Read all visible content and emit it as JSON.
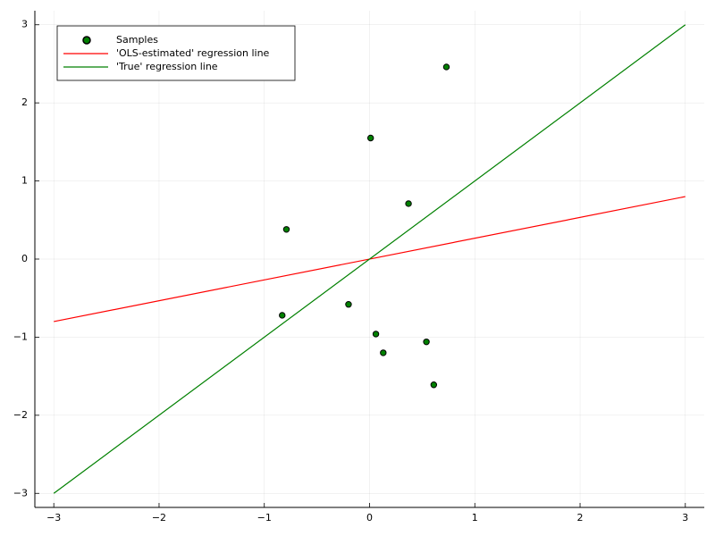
{
  "chart_data": {
    "type": "scatter",
    "xlim": [
      -3.18,
      3.18
    ],
    "ylim": [
      -3.18,
      3.18
    ],
    "xticks": [
      {
        "value": -3,
        "label": "−3"
      },
      {
        "value": -2,
        "label": "−2"
      },
      {
        "value": -1,
        "label": "−1"
      },
      0,
      1,
      2,
      3
    ],
    "yticks": [
      {
        "value": -3,
        "label": "−3"
      },
      {
        "value": -2,
        "label": "−2"
      },
      {
        "value": -1,
        "label": "−1"
      },
      0,
      1,
      2,
      3
    ],
    "grid": true,
    "legend": "top-left",
    "series": [
      {
        "name": "Samples",
        "kind": "scatter",
        "color": "#008000",
        "x": [
          -0.79,
          0.01,
          0.37,
          0.73,
          -0.83,
          -0.2,
          0.06,
          0.13,
          0.54,
          0.61
        ],
        "values": [
          0.38,
          1.55,
          0.71,
          2.46,
          -0.72,
          -0.58,
          -0.96,
          -1.2,
          -1.06,
          -1.61
        ]
      },
      {
        "name": "'OLS-estimated' regression line",
        "kind": "line",
        "color": "#ff0000",
        "x": [
          -3,
          3
        ],
        "values": [
          -0.8,
          0.8
        ]
      },
      {
        "name": "'True' regression line",
        "kind": "line",
        "color": "#008000",
        "x": [
          -3,
          3
        ],
        "values": [
          -3,
          3
        ]
      }
    ]
  }
}
